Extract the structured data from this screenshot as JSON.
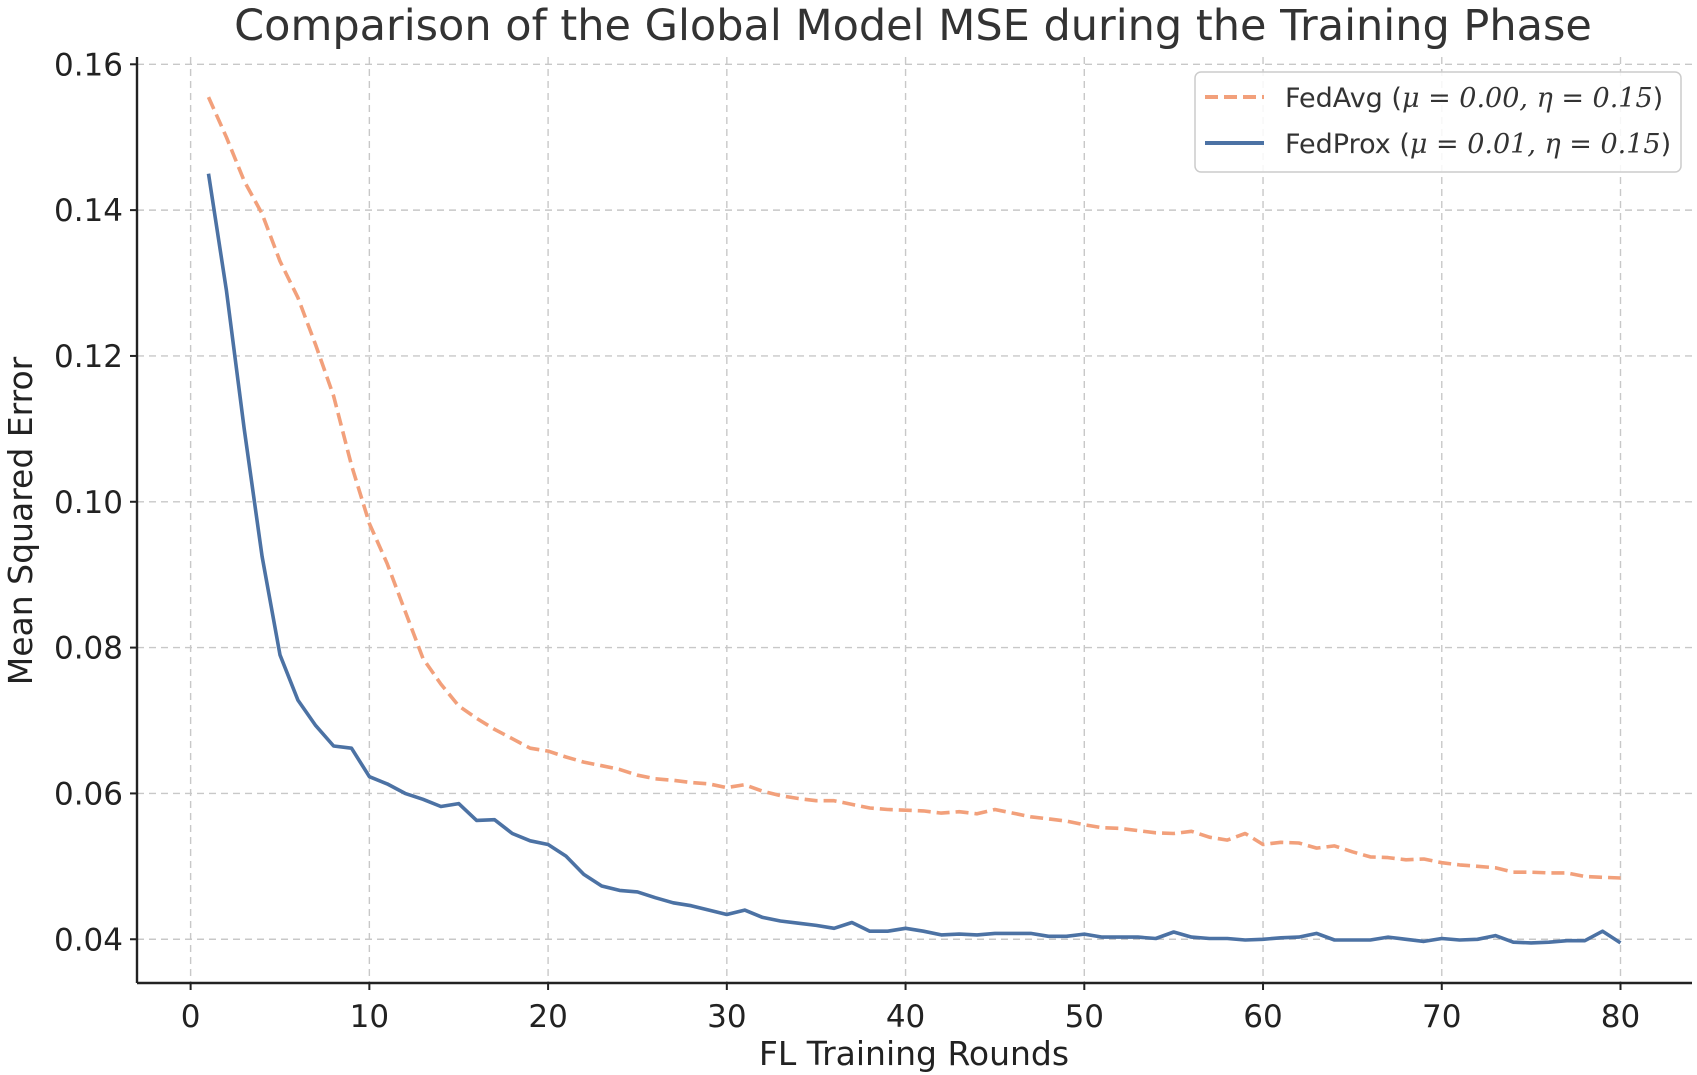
{
  "chart_data": {
    "type": "line",
    "title": "Comparison of the Global Model MSE during the Training Phase",
    "xlabel": "FL Training Rounds",
    "ylabel": "Mean Squared Error",
    "xlim": [
      -3,
      84
    ],
    "ylim": [
      0.034,
      0.161
    ],
    "xticks": [
      0,
      10,
      20,
      30,
      40,
      50,
      60,
      70,
      80
    ],
    "xtick_labels": [
      "0",
      "10",
      "20",
      "30",
      "40",
      "50",
      "60",
      "70",
      "80"
    ],
    "yticks": [
      0.04,
      0.06,
      0.08,
      0.1,
      0.12,
      0.14,
      0.16
    ],
    "ytick_labels": [
      "0.04",
      "0.06",
      "0.08",
      "0.10",
      "0.12",
      "0.14",
      "0.16"
    ],
    "grid": true,
    "legend_position": "top-right",
    "series": [
      {
        "name": "FedAvg (μ = 0.00, η = 0.15)",
        "legend_plain": "FedAvg (",
        "legend_mu": "μ = 0.00, ",
        "legend_eta": "η = 0.15",
        "legend_close": ")",
        "color": "#F2A07B",
        "line_style": "dashed",
        "x": [
          1,
          2,
          3,
          4,
          5,
          6,
          7,
          8,
          9,
          10,
          11,
          12,
          13,
          14,
          15,
          16,
          17,
          18,
          19,
          20,
          21,
          22,
          23,
          24,
          25,
          26,
          27,
          28,
          29,
          30,
          31,
          32,
          33,
          34,
          35,
          36,
          37,
          38,
          39,
          40,
          41,
          42,
          43,
          44,
          45,
          46,
          47,
          48,
          49,
          50,
          51,
          52,
          53,
          54,
          55,
          56,
          57,
          58,
          59,
          60,
          61,
          62,
          63,
          64,
          65,
          66,
          67,
          68,
          69,
          70,
          71,
          72,
          73,
          74,
          75,
          76,
          77,
          78,
          79,
          80
        ],
        "values": [
          0.1555,
          0.15,
          0.144,
          0.1395,
          0.133,
          0.128,
          0.1215,
          0.1145,
          0.105,
          0.097,
          0.0915,
          0.085,
          0.0785,
          0.075,
          0.072,
          0.0703,
          0.0688,
          0.0675,
          0.0662,
          0.0658,
          0.065,
          0.0643,
          0.0638,
          0.0633,
          0.0625,
          0.062,
          0.0618,
          0.0615,
          0.0613,
          0.0608,
          0.0612,
          0.0603,
          0.0597,
          0.0593,
          0.059,
          0.059,
          0.0585,
          0.058,
          0.0578,
          0.0577,
          0.0576,
          0.0573,
          0.0575,
          0.0572,
          0.0578,
          0.0573,
          0.0568,
          0.0565,
          0.0562,
          0.0557,
          0.0553,
          0.0552,
          0.0549,
          0.0546,
          0.0545,
          0.0548,
          0.054,
          0.0536,
          0.0545,
          0.053,
          0.0533,
          0.0532,
          0.0525,
          0.0528,
          0.052,
          0.0513,
          0.0512,
          0.0509,
          0.051,
          0.0505,
          0.0502,
          0.05,
          0.0498,
          0.0492,
          0.0492,
          0.0491,
          0.0491,
          0.0486,
          0.0485,
          0.0484
        ]
      },
      {
        "name": "FedProx (μ = 0.01, η = 0.15)",
        "legend_plain": "FedProx (",
        "legend_mu": "μ = 0.01, ",
        "legend_eta": "η = 0.15",
        "legend_close": ")",
        "color": "#4C72A4",
        "line_style": "solid",
        "x": [
          1,
          2,
          3,
          4,
          5,
          6,
          7,
          8,
          9,
          10,
          11,
          12,
          13,
          14,
          15,
          16,
          17,
          18,
          19,
          20,
          21,
          22,
          23,
          24,
          25,
          26,
          27,
          28,
          29,
          30,
          31,
          32,
          33,
          34,
          35,
          36,
          37,
          38,
          39,
          40,
          41,
          42,
          43,
          44,
          45,
          46,
          47,
          48,
          49,
          50,
          51,
          52,
          53,
          54,
          55,
          56,
          57,
          58,
          59,
          60,
          61,
          62,
          63,
          64,
          65,
          66,
          67,
          68,
          69,
          70,
          71,
          72,
          73,
          74,
          75,
          76,
          77,
          78,
          79,
          80
        ],
        "values": [
          0.145,
          0.129,
          0.11,
          0.0925,
          0.079,
          0.0728,
          0.0693,
          0.0665,
          0.0662,
          0.0623,
          0.0613,
          0.06,
          0.0592,
          0.0582,
          0.0586,
          0.0563,
          0.0564,
          0.0545,
          0.0535,
          0.053,
          0.0514,
          0.0489,
          0.0473,
          0.0467,
          0.0465,
          0.0457,
          0.045,
          0.0446,
          0.044,
          0.0434,
          0.044,
          0.043,
          0.0425,
          0.0422,
          0.0419,
          0.0415,
          0.0423,
          0.0411,
          0.0411,
          0.0415,
          0.0411,
          0.0406,
          0.0407,
          0.0406,
          0.0408,
          0.0408,
          0.0408,
          0.0404,
          0.0404,
          0.0407,
          0.0403,
          0.0403,
          0.0403,
          0.0401,
          0.041,
          0.0403,
          0.0401,
          0.0401,
          0.0399,
          0.04,
          0.0402,
          0.0403,
          0.0408,
          0.0399,
          0.0399,
          0.0399,
          0.0403,
          0.04,
          0.0397,
          0.0401,
          0.0399,
          0.04,
          0.0405,
          0.0396,
          0.0395,
          0.0396,
          0.0398,
          0.0398,
          0.0411,
          0.0395
        ]
      }
    ]
  }
}
